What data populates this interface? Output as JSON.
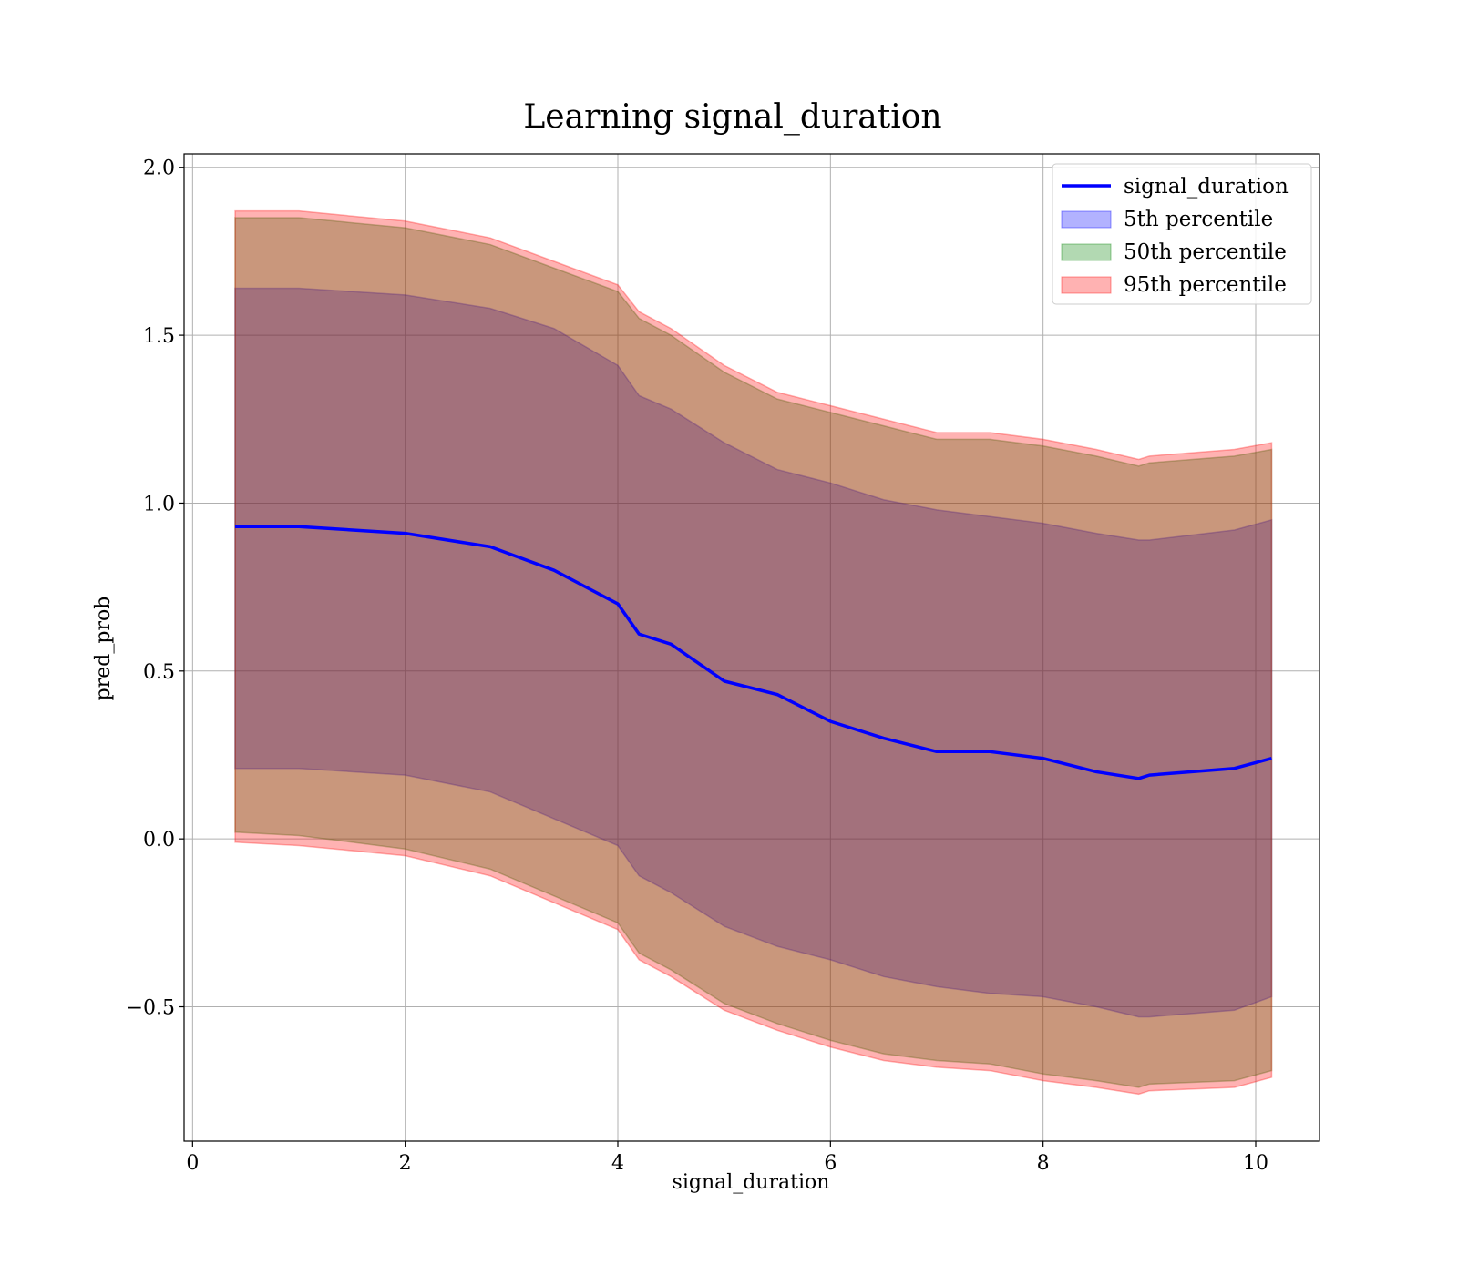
{
  "chart_data": {
    "type": "area",
    "title": "Learning signal_duration",
    "xlabel": "signal_duration",
    "ylabel": "pred_prob",
    "xlim": [
      -0.08,
      10.6
    ],
    "ylim": [
      -0.9,
      2.04
    ],
    "grid": true,
    "legend_position": "top-right",
    "xticks": [
      0,
      2,
      4,
      6,
      8,
      10
    ],
    "xtick_labels": [
      "0",
      "2",
      "4",
      "6",
      "8",
      "10"
    ],
    "yticks": [
      -0.5,
      0.0,
      0.5,
      1.0,
      1.5,
      2.0
    ],
    "ytick_labels": [
      "−0.5",
      "0.0",
      "0.5",
      "1.0",
      "1.5",
      "2.0"
    ],
    "x": [
      0.4,
      1.0,
      2.0,
      2.8,
      3.4,
      4.0,
      4.2,
      4.5,
      5.0,
      5.5,
      6.0,
      6.5,
      7.0,
      7.5,
      8.0,
      8.5,
      8.9,
      9.0,
      9.8,
      10.15
    ],
    "series": [
      {
        "name": "signal_duration",
        "kind": "line",
        "color": "#0000ff",
        "values": [
          0.93,
          0.93,
          0.91,
          0.87,
          0.8,
          0.7,
          0.61,
          0.58,
          0.47,
          0.43,
          0.35,
          0.3,
          0.26,
          0.26,
          0.24,
          0.2,
          0.18,
          0.19,
          0.21,
          0.24
        ]
      },
      {
        "name": "5th percentile",
        "kind": "band",
        "color": "#0000ff",
        "opacity": 0.3,
        "lower": [
          0.21,
          0.21,
          0.19,
          0.14,
          0.06,
          -0.02,
          -0.11,
          -0.16,
          -0.26,
          -0.32,
          -0.36,
          -0.41,
          -0.44,
          -0.46,
          -0.47,
          -0.5,
          -0.53,
          -0.53,
          -0.51,
          -0.47
        ],
        "upper": [
          1.64,
          1.64,
          1.62,
          1.58,
          1.52,
          1.41,
          1.32,
          1.28,
          1.18,
          1.1,
          1.06,
          1.01,
          0.98,
          0.96,
          0.94,
          0.91,
          0.89,
          0.89,
          0.92,
          0.95
        ]
      },
      {
        "name": "50th percentile",
        "kind": "band",
        "color": "#008000",
        "opacity": 0.3,
        "lower": [
          0.02,
          0.01,
          -0.03,
          -0.09,
          -0.17,
          -0.25,
          -0.34,
          -0.39,
          -0.49,
          -0.55,
          -0.6,
          -0.64,
          -0.66,
          -0.67,
          -0.7,
          -0.72,
          -0.74,
          -0.73,
          -0.72,
          -0.69
        ],
        "upper": [
          1.85,
          1.85,
          1.82,
          1.77,
          1.7,
          1.63,
          1.55,
          1.5,
          1.39,
          1.31,
          1.27,
          1.23,
          1.19,
          1.19,
          1.17,
          1.14,
          1.11,
          1.12,
          1.14,
          1.16
        ]
      },
      {
        "name": "95th percentile",
        "kind": "band",
        "color": "#ff0000",
        "opacity": 0.3,
        "lower": [
          -0.01,
          -0.02,
          -0.05,
          -0.11,
          -0.19,
          -0.27,
          -0.36,
          -0.41,
          -0.51,
          -0.57,
          -0.62,
          -0.66,
          -0.68,
          -0.69,
          -0.72,
          -0.74,
          -0.76,
          -0.75,
          -0.74,
          -0.71
        ],
        "upper": [
          1.87,
          1.87,
          1.84,
          1.79,
          1.72,
          1.65,
          1.57,
          1.52,
          1.41,
          1.33,
          1.29,
          1.25,
          1.21,
          1.21,
          1.19,
          1.16,
          1.13,
          1.14,
          1.16,
          1.18
        ]
      }
    ]
  }
}
